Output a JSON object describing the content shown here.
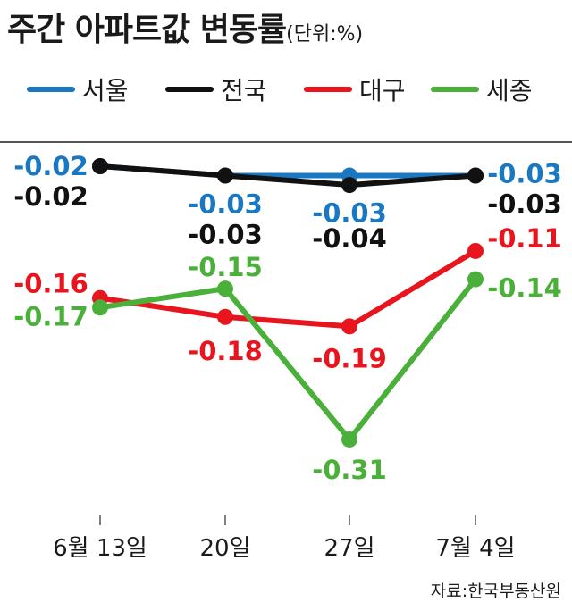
{
  "title": "주간 아파트값 변동률",
  "unit": "(단위:%)",
  "source": "자료:한국부동산원",
  "colors": {
    "서울": "#1a78c2",
    "전국": "#111111",
    "대구": "#e8141e",
    "세종": "#4ab03a"
  },
  "chart_data": {
    "type": "line",
    "title": "주간 아파트값 변동률",
    "categories": [
      "6월 13일",
      "20일",
      "27일",
      "7월 4일"
    ],
    "series": [
      {
        "name": "서울",
        "values": [
          -0.02,
          -0.03,
          -0.03,
          -0.03
        ]
      },
      {
        "name": "전국",
        "values": [
          -0.02,
          -0.03,
          -0.04,
          -0.03
        ]
      },
      {
        "name": "대구",
        "values": [
          -0.16,
          -0.18,
          -0.19,
          -0.11
        ]
      },
      {
        "name": "세종",
        "values": [
          -0.17,
          -0.15,
          -0.31,
          -0.14
        ]
      }
    ],
    "legend_position": "top",
    "grid": false
  }
}
